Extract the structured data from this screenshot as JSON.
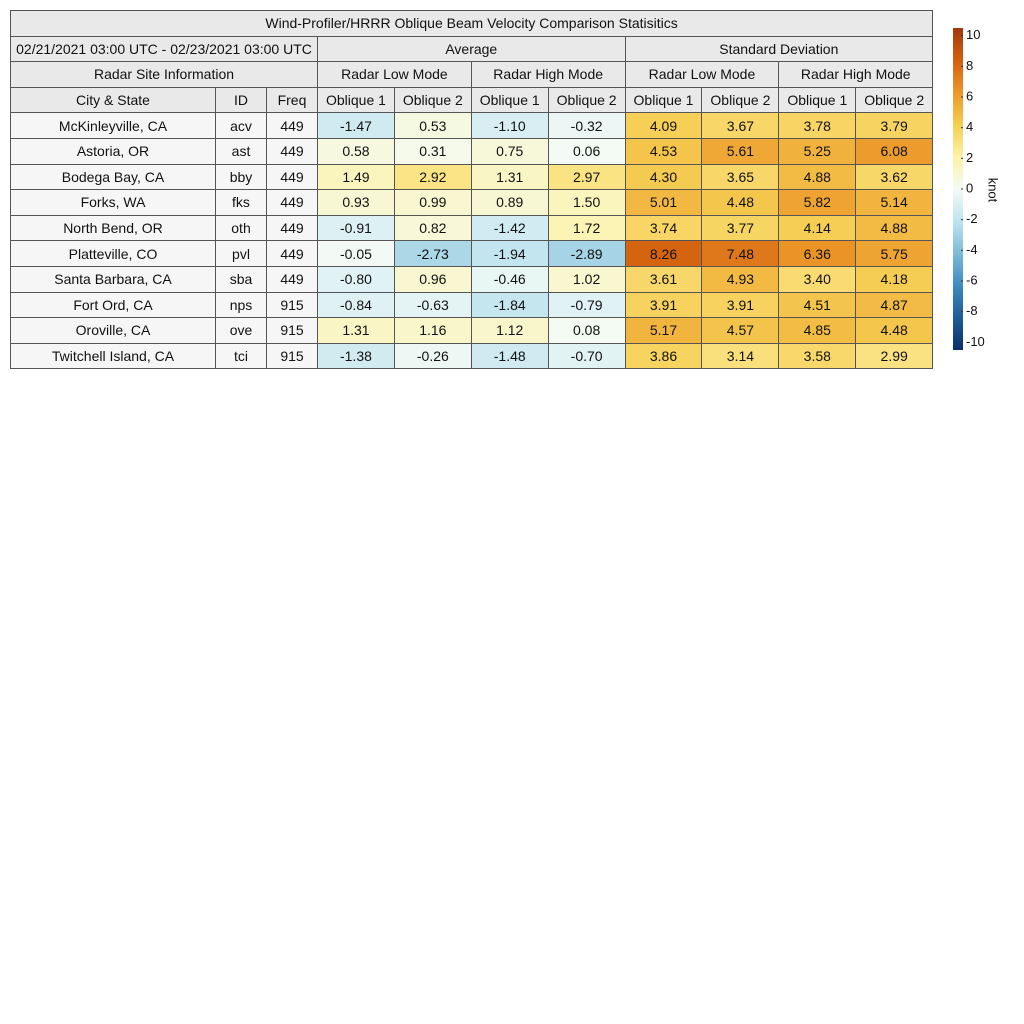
{
  "table": {
    "title": "Wind-Profiler/HRRR Oblique Beam Velocity Comparison Statisitics",
    "date_range": "02/21/2021 03:00 UTC - 02/23/2021 03:00 UTC",
    "site_info": "Radar Site Information",
    "stat_groups": [
      {
        "label": "Average",
        "modes": [
          "Radar Low Mode",
          "Radar High Mode"
        ]
      },
      {
        "label": "Standard Deviation",
        "modes": [
          "Radar Low Mode",
          "Radar High Mode"
        ]
      }
    ],
    "columns": [
      "City & State",
      "ID",
      "Freq",
      "Oblique 1",
      "Oblique 2",
      "Oblique 1",
      "Oblique 2",
      "Oblique 1",
      "Oblique 2",
      "Oblique 1",
      "Oblique 2"
    ],
    "rows": [
      [
        "McKinleyville, CA",
        "acv",
        "449",
        "-1.47",
        "0.53",
        "-1.10",
        "-0.32",
        "4.09",
        "3.67",
        "3.78",
        "3.79"
      ],
      [
        "Astoria, OR",
        "ast",
        "449",
        "0.58",
        "0.31",
        "0.75",
        "0.06",
        "4.53",
        "5.61",
        "5.25",
        "6.08"
      ],
      [
        "Bodega Bay, CA",
        "bby",
        "449",
        "1.49",
        "2.92",
        "1.31",
        "2.97",
        "4.30",
        "3.65",
        "4.88",
        "3.62"
      ],
      [
        "Forks, WA",
        "fks",
        "449",
        "0.93",
        "0.99",
        "0.89",
        "1.50",
        "5.01",
        "4.48",
        "5.82",
        "5.14"
      ],
      [
        "North Bend, OR",
        "oth",
        "449",
        "-0.91",
        "0.82",
        "-1.42",
        "1.72",
        "3.74",
        "3.77",
        "4.14",
        "4.88"
      ],
      [
        "Platteville, CO",
        "pvl",
        "449",
        "-0.05",
        "-2.73",
        "-1.94",
        "-2.89",
        "8.26",
        "7.48",
        "6.36",
        "5.75"
      ],
      [
        "Santa Barbara, CA",
        "sba",
        "449",
        "-0.80",
        "0.96",
        "-0.46",
        "1.02",
        "3.61",
        "4.93",
        "3.40",
        "4.18"
      ],
      [
        "Fort Ord, CA",
        "nps",
        "915",
        "-0.84",
        "-0.63",
        "-1.84",
        "-0.79",
        "3.91",
        "3.91",
        "4.51",
        "4.87"
      ],
      [
        "Oroville, CA",
        "ove",
        "915",
        "1.31",
        "1.16",
        "1.12",
        "0.08",
        "5.17",
        "4.57",
        "4.85",
        "4.48"
      ],
      [
        "Twitchell Island, CA",
        "tci",
        "915",
        "-1.38",
        "-0.26",
        "-1.48",
        "-0.70",
        "3.86",
        "3.14",
        "3.58",
        "2.99"
      ]
    ]
  },
  "colorbar": {
    "label": "knot",
    "lim": [
      -10.5,
      10.5
    ],
    "ticks": [
      10,
      8,
      6,
      4,
      2,
      0,
      -2,
      -4,
      -6,
      -8,
      -10
    ],
    "colors": [
      "#08306b",
      "#1f5c99",
      "#3f8ac0",
      "#7cbbd8",
      "#bfe3ee",
      "#f4fbf6",
      "#fdf2a6",
      "#f6cd52",
      "#eb9628",
      "#d3600f",
      "#a0380e"
    ]
  }
}
